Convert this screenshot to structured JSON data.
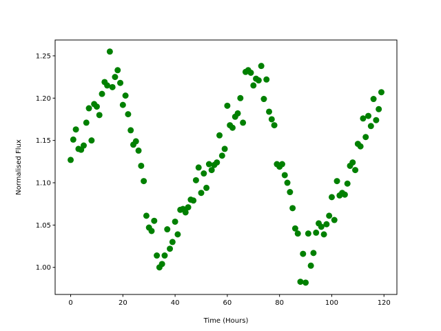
{
  "chart_data": {
    "type": "scatter",
    "title": "",
    "xlabel": "Time (Hours)",
    "ylabel": "Normalised Flux",
    "xlim": [
      -5.95,
      124.95
    ],
    "ylim": [
      0.968,
      1.2687
    ],
    "xticks": [
      0,
      20,
      40,
      60,
      80,
      100,
      120
    ],
    "xtick_labels": [
      "0",
      "20",
      "40",
      "60",
      "80",
      "100",
      "120"
    ],
    "yticks": [
      1.0,
      1.05,
      1.1,
      1.15,
      1.2,
      1.25
    ],
    "ytick_labels": [
      "1.00",
      "1.05",
      "1.10",
      "1.15",
      "1.20",
      "1.25"
    ],
    "grid": false,
    "marker_color": "#008000",
    "series": [
      {
        "x": [
          0,
          1,
          2,
          3,
          4,
          5,
          6,
          7,
          8,
          9,
          10,
          11,
          12,
          13,
          14,
          15,
          16,
          17,
          18,
          19,
          20,
          21,
          22,
          23,
          24,
          25,
          26,
          27,
          28,
          29,
          30,
          31,
          32,
          33,
          34,
          35,
          36,
          37,
          38,
          39,
          40,
          41,
          42,
          43,
          44,
          45,
          46,
          47,
          48,
          49,
          50,
          51,
          52,
          53,
          54,
          55,
          56,
          57,
          58,
          59,
          60,
          61,
          62,
          63,
          64,
          65,
          66,
          67,
          68,
          69,
          70,
          71,
          72,
          73,
          74,
          75,
          76,
          77,
          78,
          79,
          80,
          81,
          82,
          83,
          84,
          85,
          86,
          87,
          88,
          89,
          90,
          91,
          92,
          93,
          94,
          95,
          96,
          97,
          98,
          99,
          100,
          101,
          102,
          103,
          104,
          105,
          106,
          107,
          108,
          109,
          110,
          111,
          112,
          113,
          114,
          115,
          116,
          117,
          118,
          119
        ],
        "y": [
          1.127,
          1.151,
          1.163,
          1.14,
          1.139,
          1.144,
          1.171,
          1.188,
          1.15,
          1.193,
          1.19,
          1.18,
          1.205,
          1.219,
          1.215,
          1.255,
          1.213,
          1.225,
          1.233,
          1.218,
          1.192,
          1.203,
          1.181,
          1.162,
          1.145,
          1.149,
          1.138,
          1.12,
          1.102,
          1.061,
          1.047,
          1.043,
          1.055,
          1.014,
          1.0,
          1.004,
          1.014,
          1.045,
          1.022,
          1.03,
          1.054,
          1.039,
          1.068,
          1.069,
          1.065,
          1.071,
          1.08,
          1.079,
          1.103,
          1.118,
          1.088,
          1.111,
          1.094,
          1.122,
          1.115,
          1.121,
          1.124,
          1.156,
          1.132,
          1.14,
          1.191,
          1.168,
          1.165,
          1.178,
          1.182,
          1.2,
          1.171,
          1.231,
          1.233,
          1.23,
          1.215,
          1.223,
          1.221,
          1.238,
          1.199,
          1.222,
          1.184,
          1.175,
          1.168,
          1.122,
          1.119,
          1.122,
          1.109,
          1.1,
          1.089,
          1.07,
          1.046,
          1.04,
          0.983,
          1.016,
          0.982,
          1.04,
          1.002,
          1.017,
          1.041,
          1.052,
          1.048,
          1.039,
          1.051,
          1.061,
          1.083,
          1.056,
          1.102,
          1.085,
          1.088,
          1.086,
          1.099,
          1.12,
          1.124,
          1.115,
          1.146,
          1.143,
          1.176,
          1.154,
          1.179,
          1.167,
          1.199,
          1.174,
          1.187,
          1.207
        ]
      }
    ]
  }
}
